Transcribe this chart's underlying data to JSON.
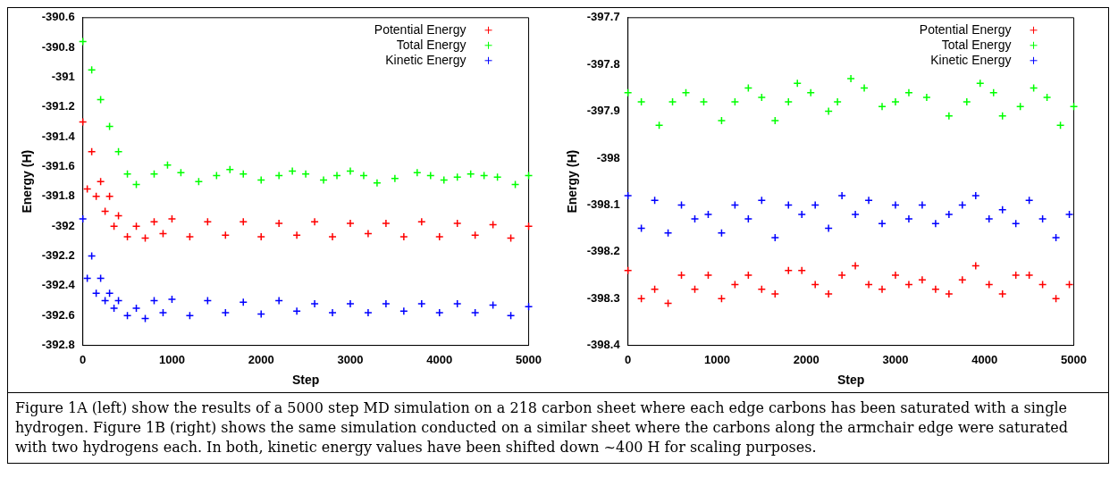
{
  "chart_data": [
    {
      "type": "scatter",
      "xlabel": "Step",
      "ylabel": "Energy (H)",
      "xlim": [
        0,
        5000
      ],
      "xticks": [
        0,
        1000,
        2000,
        3000,
        4000,
        5000
      ],
      "ylim": [
        -392.8,
        -390.6
      ],
      "yticks": [
        -392.8,
        -392.6,
        -392.4,
        -392.2,
        -392,
        -391.8,
        -391.6,
        -391.4,
        -391.2,
        -391,
        -390.8,
        -390.6
      ],
      "legend": "top right",
      "series": [
        {
          "name": "Potential Energy",
          "color": "#ff0000",
          "marker": "cross",
          "x": [
            0,
            50,
            100,
            150,
            200,
            250,
            300,
            350,
            400,
            500,
            600,
            700,
            800,
            900,
            1000,
            1200,
            1400,
            1600,
            1800,
            2000,
            2200,
            2400,
            2600,
            2800,
            3000,
            3200,
            3400,
            3600,
            3800,
            4000,
            4200,
            4400,
            4600,
            4800,
            5000
          ],
          "values": [
            -391.3,
            -391.75,
            -391.5,
            -391.8,
            -391.7,
            -391.9,
            -391.8,
            -392.0,
            -391.93,
            -392.07,
            -392.0,
            -392.08,
            -391.97,
            -392.05,
            -391.95,
            -392.07,
            -391.97,
            -392.06,
            -391.97,
            -392.07,
            -391.98,
            -392.06,
            -391.97,
            -392.07,
            -391.98,
            -392.05,
            -391.98,
            -392.07,
            -391.97,
            -392.07,
            -391.98,
            -392.06,
            -391.99,
            -392.08,
            -392.0
          ]
        },
        {
          "name": "Total Energy",
          "color": "#00ff00",
          "marker": "cross",
          "x": [
            0,
            100,
            200,
            300,
            400,
            500,
            600,
            800,
            950,
            1100,
            1300,
            1500,
            1650,
            1800,
            2000,
            2200,
            2350,
            2500,
            2700,
            2850,
            3000,
            3150,
            3300,
            3500,
            3750,
            3900,
            4050,
            4200,
            4350,
            4500,
            4650,
            4850,
            5000
          ],
          "values": [
            -390.76,
            -390.95,
            -391.15,
            -391.33,
            -391.5,
            -391.65,
            -391.72,
            -391.65,
            -391.59,
            -391.64,
            -391.7,
            -391.66,
            -391.62,
            -391.65,
            -391.69,
            -391.66,
            -391.63,
            -391.65,
            -391.69,
            -391.66,
            -391.63,
            -391.66,
            -391.71,
            -391.68,
            -391.64,
            -391.66,
            -391.69,
            -391.67,
            -391.65,
            -391.66,
            -391.67,
            -391.72,
            -391.66
          ]
        },
        {
          "name": "Kinetic Energy",
          "color": "#0000ff",
          "marker": "cross",
          "x": [
            0,
            50,
            100,
            150,
            200,
            250,
            300,
            350,
            400,
            500,
            600,
            700,
            800,
            900,
            1000,
            1200,
            1400,
            1600,
            1800,
            2000,
            2200,
            2400,
            2600,
            2800,
            3000,
            3200,
            3400,
            3600,
            3800,
            4000,
            4200,
            4400,
            4600,
            4800,
            5000
          ],
          "values": [
            -391.95,
            -392.35,
            -392.2,
            -392.45,
            -392.35,
            -392.5,
            -392.45,
            -392.55,
            -392.5,
            -392.6,
            -392.55,
            -392.62,
            -392.5,
            -392.58,
            -392.49,
            -392.6,
            -392.5,
            -392.58,
            -392.51,
            -392.59,
            -392.5,
            -392.57,
            -392.52,
            -392.58,
            -392.52,
            -392.58,
            -392.52,
            -392.57,
            -392.52,
            -392.58,
            -392.52,
            -392.58,
            -392.53,
            -392.6,
            -392.54
          ]
        }
      ]
    },
    {
      "type": "scatter",
      "xlabel": "Step",
      "ylabel": "Energy (H)",
      "xlim": [
        0,
        5000
      ],
      "xticks": [
        0,
        1000,
        2000,
        3000,
        4000,
        5000
      ],
      "ylim": [
        -398.4,
        -397.7
      ],
      "yticks": [
        -398.4,
        -398.3,
        -398.2,
        -398.1,
        -398,
        -397.9,
        -397.8,
        -397.7
      ],
      "legend": "top right",
      "series": [
        {
          "name": "Potential Energy",
          "color": "#ff0000",
          "marker": "cross",
          "x": [
            0,
            150,
            300,
            450,
            600,
            750,
            900,
            1050,
            1200,
            1350,
            1500,
            1650,
            1800,
            1950,
            2100,
            2250,
            2400,
            2550,
            2700,
            2850,
            3000,
            3150,
            3300,
            3450,
            3600,
            3750,
            3900,
            4050,
            4200,
            4350,
            4500,
            4650,
            4800,
            4950
          ],
          "values": [
            -398.24,
            -398.3,
            -398.28,
            -398.31,
            -398.25,
            -398.28,
            -398.25,
            -398.3,
            -398.27,
            -398.25,
            -398.28,
            -398.29,
            -398.24,
            -398.24,
            -398.27,
            -398.29,
            -398.25,
            -398.23,
            -398.27,
            -398.28,
            -398.25,
            -398.27,
            -398.26,
            -398.28,
            -398.29,
            -398.26,
            -398.23,
            -398.27,
            -398.29,
            -398.25,
            -398.25,
            -398.27,
            -398.3,
            -398.27
          ]
        },
        {
          "name": "Total Energy",
          "color": "#00ff00",
          "marker": "cross",
          "x": [
            0,
            150,
            350,
            500,
            650,
            850,
            1050,
            1200,
            1350,
            1500,
            1650,
            1800,
            1900,
            2050,
            2250,
            2350,
            2500,
            2650,
            2850,
            3000,
            3150,
            3350,
            3600,
            3800,
            3950,
            4100,
            4200,
            4400,
            4550,
            4700,
            4850,
            5000
          ],
          "values": [
            -397.86,
            -397.88,
            -397.93,
            -397.88,
            -397.86,
            -397.88,
            -397.92,
            -397.88,
            -397.85,
            -397.87,
            -397.92,
            -397.88,
            -397.84,
            -397.86,
            -397.9,
            -397.88,
            -397.83,
            -397.85,
            -397.89,
            -397.88,
            -397.86,
            -397.87,
            -397.91,
            -397.88,
            -397.84,
            -397.86,
            -397.91,
            -397.89,
            -397.85,
            -397.87,
            -397.93,
            -397.89
          ]
        },
        {
          "name": "Kinetic Energy",
          "color": "#0000ff",
          "marker": "cross",
          "x": [
            0,
            150,
            300,
            450,
            600,
            750,
            900,
            1050,
            1200,
            1350,
            1500,
            1650,
            1800,
            1950,
            2100,
            2250,
            2400,
            2550,
            2700,
            2850,
            3000,
            3150,
            3300,
            3450,
            3600,
            3750,
            3900,
            4050,
            4200,
            4350,
            4500,
            4650,
            4800,
            4950
          ],
          "values": [
            -398.08,
            -398.15,
            -398.09,
            -398.16,
            -398.1,
            -398.13,
            -398.12,
            -398.16,
            -398.1,
            -398.13,
            -398.09,
            -398.17,
            -398.1,
            -398.12,
            -398.1,
            -398.15,
            -398.08,
            -398.12,
            -398.09,
            -398.14,
            -398.1,
            -398.13,
            -398.1,
            -398.14,
            -398.12,
            -398.1,
            -398.08,
            -398.13,
            -398.11,
            -398.14,
            -398.09,
            -398.13,
            -398.17,
            -398.12
          ]
        }
      ],
      "annotations": [
        "Figure 1A (left) show the results of a 5000 step MD simulation on a 218 carbon sheet where each edge carbons has been saturated with a single hydrogen. Figure 1B (right) shows the same simulation conducted on a similar sheet where the carbons along the armchair edge were saturated with two hydrogens each. In both, kinetic energy values have been shifted down ~400 H  for scaling purposes."
      ]
    }
  ]
}
